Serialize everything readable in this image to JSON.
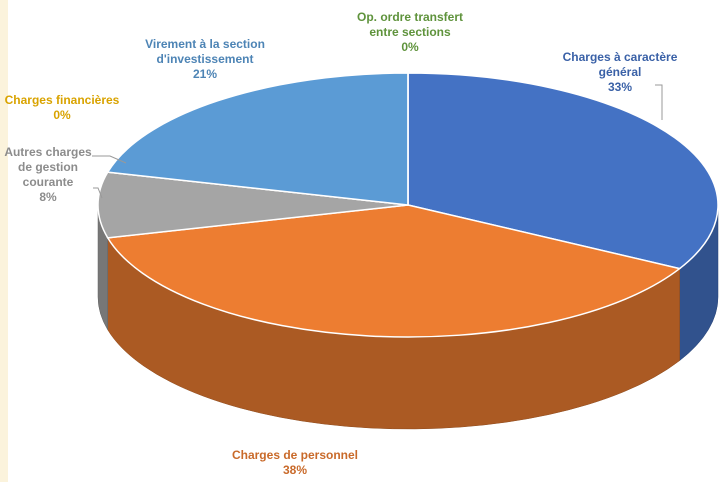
{
  "chart_data": {
    "type": "pie3d",
    "categories": [
      "Charges à caractère général",
      "Charges de personnel",
      "Autres charges de gestion courante",
      "Charges financières",
      "Virement à la section d'investissement",
      "Op. ordre transfert entre sections"
    ],
    "values": [
      33,
      38,
      8,
      0,
      21,
      0
    ],
    "value_labels": [
      "33%",
      "38%",
      "8%",
      "0%",
      "21%",
      "0%"
    ],
    "colors": [
      "#4472c4",
      "#ed7d31",
      "#a5a5a5",
      "#ffc000",
      "#5b9bd5",
      "#70ad47"
    ]
  }
}
